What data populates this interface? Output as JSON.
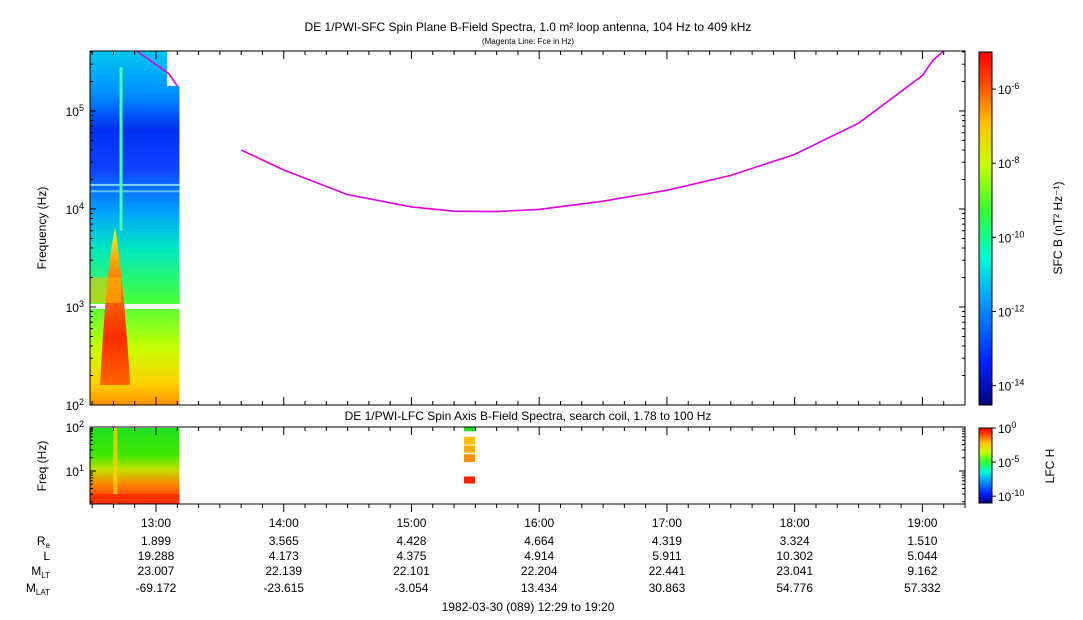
{
  "chart_data": [
    {
      "type": "heatmap",
      "title": "DE 1/PWI-SFC  Spin Plane B-Field Spectra, 1.0 m² loop antenna, 104 Hz to 409 kHz",
      "subtitle": "(Magenta Line: Fce in Hz)",
      "ylabel": "Frequency (Hz)",
      "yscale": "log",
      "ylim": [
        100,
        409000
      ],
      "yticks": [
        {
          "value": 100,
          "base": "10",
          "exp": "2"
        },
        {
          "value": 1000,
          "base": "10",
          "exp": "3"
        },
        {
          "value": 10000,
          "base": "10",
          "exp": "4"
        },
        {
          "value": 100000,
          "base": "10",
          "exp": "5"
        }
      ],
      "colorbar": {
        "label": "SFC B (nT² Hz⁻¹)",
        "scale": "log",
        "range": [
          3e-15,
          1e-05
        ],
        "ticks": [
          {
            "value": 1e-06,
            "base": "10",
            "exp": "-6"
          },
          {
            "value": 1e-08,
            "base": "10",
            "exp": "-8"
          },
          {
            "value": 1e-10,
            "base": "10",
            "exp": "-10"
          },
          {
            "value": 1e-12,
            "base": "10",
            "exp": "-12"
          },
          {
            "value": 1e-14,
            "base": "10",
            "exp": "-14"
          }
        ]
      },
      "fce_line": {
        "name": "Fce",
        "color": "#e000e0",
        "segments": [
          [
            [
              "12:51",
              409000
            ],
            [
              "13:06",
              240000
            ],
            [
              "13:10",
              180000
            ]
          ],
          [
            [
              "13:40",
              40000
            ],
            [
              "14:00",
              25000
            ],
            [
              "14:30",
              14000
            ],
            [
              "15:00",
              10500
            ],
            [
              "15:20",
              9500
            ],
            [
              "15:40",
              9400
            ],
            [
              "16:00",
              9900
            ],
            [
              "16:30",
              12000
            ],
            [
              "17:00",
              15500
            ],
            [
              "17:30",
              22000
            ],
            [
              "18:00",
              36000
            ],
            [
              "18:30",
              75000
            ],
            [
              "19:00",
              230000
            ],
            [
              "19:05",
              330000
            ],
            [
              "19:10",
              409000
            ]
          ]
        ]
      },
      "data_coverage": {
        "start": "12:29",
        "end": "13:11"
      }
    },
    {
      "type": "heatmap",
      "title": "DE 1/PWI-LFC  Spin Axis B-Field Spectra, search coil, 1.78 to 100 Hz",
      "ylabel": "Freq (Hz)",
      "yscale": "log",
      "ylim": [
        1.78,
        100
      ],
      "yticks": [
        {
          "value": 10,
          "base": "10",
          "exp": "1"
        },
        {
          "value": 100,
          "base": "10",
          "exp": "2"
        }
      ],
      "colorbar": {
        "label": "LFC H",
        "scale": "log",
        "range": [
          1e-11,
          1
        ],
        "ticks": [
          {
            "value": 1,
            "base": "10",
            "exp": "0"
          },
          {
            "value": 1e-05,
            "base": "10",
            "exp": "-5"
          },
          {
            "value": 1e-10,
            "base": "10",
            "exp": "-10"
          }
        ]
      },
      "data_coverage": {
        "start": "12:29",
        "end": "13:11"
      },
      "isolated_samples_time": "15:27"
    }
  ],
  "xaxis": {
    "range": [
      "12:29",
      "19:20"
    ],
    "ticks": [
      "13:00",
      "14:00",
      "15:00",
      "16:00",
      "17:00",
      "18:00",
      "19:00"
    ]
  },
  "ephemeris": {
    "rows": [
      {
        "label": "R",
        "sub": "e",
        "values": [
          "1.899",
          "3.565",
          "4.428",
          "4.664",
          "4.319",
          "3.324",
          "1.510"
        ]
      },
      {
        "label": "L",
        "sub": "",
        "values": [
          "19.288",
          "4.173",
          "4.375",
          "4.914",
          "5.911",
          "10.302",
          "5.044"
        ]
      },
      {
        "label": "M",
        "sub": "LT",
        "values": [
          "23.007",
          "22.139",
          "22.101",
          "22.204",
          "22.441",
          "23.041",
          "9.162"
        ]
      },
      {
        "label": "M",
        "sub": "LAT",
        "values": [
          "-69.172",
          "-23.615",
          "-3.054",
          "13.434",
          "30.863",
          "54.776",
          "57.332"
        ]
      }
    ]
  },
  "footer": "1982-03-30 (089) 12:29 to 19:20"
}
